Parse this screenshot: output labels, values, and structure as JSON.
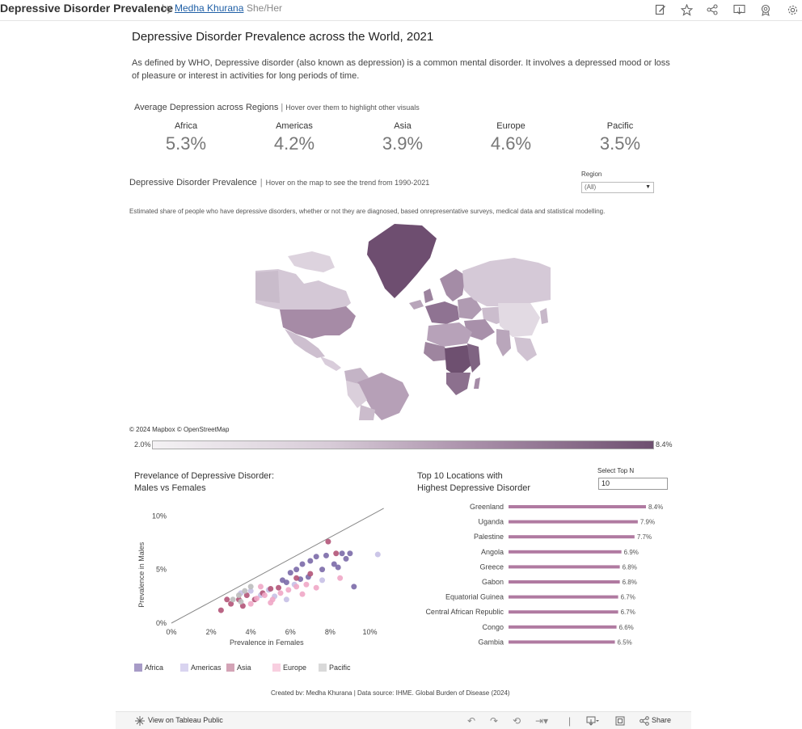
{
  "header": {
    "viz_title": "Depressive Disorder Prevalence",
    "by": "by",
    "author": "Medha Khurana",
    "pronouns": "She/Her",
    "icons": [
      "edit-icon",
      "star-icon",
      "share-icon",
      "download-icon",
      "badge-icon",
      "settings-icon"
    ]
  },
  "dashboard": {
    "title": "Depressive Disorder Prevalence across the World, 2021",
    "description": "As defined by WHO, Depressive disorder (also known as depression) is a common mental disorder. It involves a depressed mood or loss of pleasure or interest in activities for long periods of time."
  },
  "kpis": {
    "heading": "Average Depression across Regions",
    "hint": "Hover over them to highlight other visuals",
    "items": [
      {
        "region": "Africa",
        "value": "5.3%"
      },
      {
        "region": "Americas",
        "value": "4.2%"
      },
      {
        "region": "Asia",
        "value": "3.9%"
      },
      {
        "region": "Europe",
        "value": "4.6%"
      },
      {
        "region": "Pacific",
        "value": "3.5%"
      }
    ]
  },
  "map": {
    "heading": "Depressive Disorder Prevalence",
    "hint": "Hover on the map to see the trend from 1990-2021",
    "subtitle": "Estimated share of people who have depressive disorders, whether or not they are diagnosed, based onrepresentative surveys, medical data and statistical modelling.",
    "region_filter_label": "Region",
    "region_filter_value": "(All)",
    "attribution": "© 2024 Mapbox  © OpenStreetMap",
    "scale_min": "2.0%",
    "scale_max": "8.4%"
  },
  "scatter": {
    "title_line1": "Prevelance of Depressive Disorder:",
    "title_line2": "Males vs Females"
  },
  "legend": {
    "items": [
      {
        "label": "Africa",
        "color": "#a79bc7"
      },
      {
        "label": "Americas",
        "color": "#d9d4f0"
      },
      {
        "label": "Asia",
        "color": "#d3a3b6"
      },
      {
        "label": "Europe",
        "color": "#f8cfe0"
      },
      {
        "label": "Pacific",
        "color": "#d9d9d9"
      }
    ]
  },
  "topn": {
    "title_line1": "Top 10 Locations with",
    "title_line2": "Highest Depressive Disorder",
    "select_label": "Select Top N",
    "select_value": "10"
  },
  "chart_data": [
    {
      "type": "scatter",
      "title": "Prevelance of Depressive Disorder: Males vs Females",
      "xlabel": "Prevalence in Females",
      "ylabel": "Prevalence in Males",
      "xlim": [
        0,
        11
      ],
      "ylim": [
        0,
        11
      ],
      "x_ticks": [
        "0%",
        "2%",
        "4%",
        "6%",
        "8%",
        "10%"
      ],
      "y_ticks": [
        "0%",
        "5%",
        "10%"
      ],
      "reference_line": "y = x",
      "series": [
        {
          "name": "Africa",
          "color": "#7b6aa8",
          "points": [
            [
              5.6,
              4.0
            ],
            [
              6.0,
              4.7
            ],
            [
              6.3,
              5.0
            ],
            [
              6.6,
              5.5
            ],
            [
              7.0,
              5.8
            ],
            [
              7.3,
              6.2
            ],
            [
              7.8,
              6.3
            ],
            [
              8.2,
              5.5
            ],
            [
              8.4,
              5.2
            ],
            [
              8.6,
              6.5
            ],
            [
              8.8,
              6.0
            ],
            [
              9.0,
              6.5
            ],
            [
              9.2,
              3.4
            ],
            [
              6.9,
              4.3
            ],
            [
              5.8,
              3.8
            ],
            [
              6.5,
              4.1
            ],
            [
              7.6,
              5.0
            ]
          ]
        },
        {
          "name": "Americas",
          "color": "#c7c0e6",
          "points": [
            [
              10.4,
              6.4
            ],
            [
              4.0,
              3.0
            ],
            [
              4.5,
              2.6
            ],
            [
              5.2,
              2.5
            ],
            [
              6.2,
              3.6
            ],
            [
              7.6,
              4.0
            ],
            [
              3.5,
              2.8
            ],
            [
              4.9,
              3.1
            ],
            [
              5.8,
              2.2
            ]
          ]
        },
        {
          "name": "Asia",
          "color": "#b35478",
          "points": [
            [
              2.5,
              1.2
            ],
            [
              3.0,
              1.8
            ],
            [
              3.4,
              2.2
            ],
            [
              3.8,
              2.6
            ],
            [
              4.2,
              2.2
            ],
            [
              4.6,
              2.8
            ],
            [
              5.0,
              3.2
            ],
            [
              5.4,
              3.3
            ],
            [
              6.3,
              4.2
            ],
            [
              7.0,
              4.6
            ],
            [
              7.9,
              7.6
            ],
            [
              8.3,
              6.5
            ],
            [
              2.8,
              2.2
            ],
            [
              3.6,
              1.6
            ]
          ]
        },
        {
          "name": "Europe",
          "color": "#f0a7c6",
          "points": [
            [
              4.0,
              1.8
            ],
            [
              4.3,
              2.3
            ],
            [
              4.7,
              2.6
            ],
            [
              5.1,
              2.2
            ],
            [
              5.5,
              2.8
            ],
            [
              5.9,
              3.1
            ],
            [
              6.3,
              3.4
            ],
            [
              6.8,
              3.6
            ],
            [
              7.3,
              3.3
            ],
            [
              4.5,
              3.4
            ],
            [
              5.0,
              1.9
            ],
            [
              6.6,
              2.7
            ],
            [
              8.5,
              4.2
            ]
          ]
        },
        {
          "name": "Pacific",
          "color": "#bdbdbd",
          "points": [
            [
              3.1,
              2.2
            ],
            [
              3.4,
              2.6
            ],
            [
              3.7,
              3.0
            ],
            [
              3.5,
              2.0
            ],
            [
              4.0,
              3.4
            ]
          ]
        }
      ]
    },
    {
      "type": "bar",
      "title": "Top 10 Locations with Highest Depressive Disorder",
      "categories": [
        "Greenland",
        "Uganda",
        "Palestine",
        "Angola",
        "Greece",
        "Gabon",
        "Equatorial Guinea",
        "Central African Republic",
        "Congo",
        "Gambia"
      ],
      "values": [
        8.4,
        7.9,
        7.7,
        6.9,
        6.8,
        6.8,
        6.7,
        6.7,
        6.6,
        6.5
      ],
      "labels": [
        "8.4%",
        "7.9%",
        "7.7%",
        "6.9%",
        "6.8%",
        "6.8%",
        "6.7%",
        "6.7%",
        "6.6%",
        "6.5%"
      ],
      "color": "#b07aa1"
    }
  ],
  "footer": {
    "credit": "Created bv: Medha Khurana | Data source: IHME. Global Burden of Disease (2024)",
    "view_public": "View on Tableau Public",
    "share": "Share"
  }
}
